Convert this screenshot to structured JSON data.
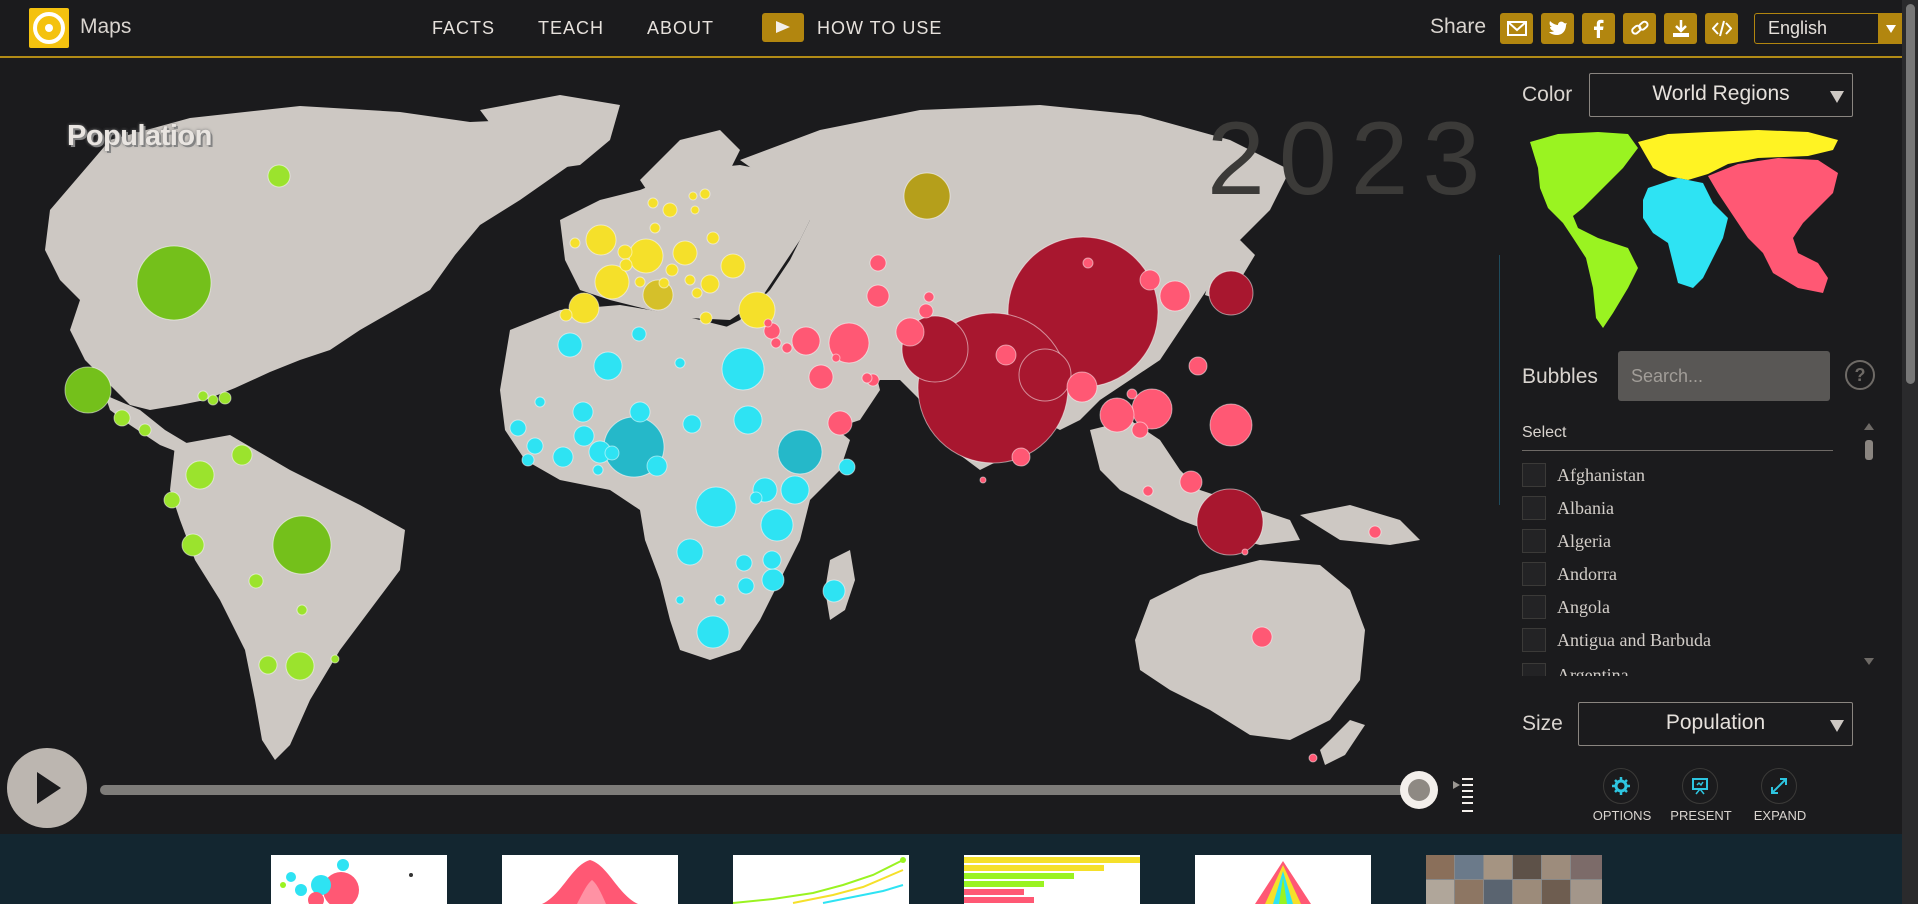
{
  "header": {
    "app_name": "Maps",
    "nav": [
      "FACTS",
      "TEACH",
      "ABOUT"
    ],
    "how_to_use": "HOW TO USE",
    "share_label": "Share",
    "share_icons": [
      "mail-icon",
      "twitter-icon",
      "facebook-icon",
      "link-icon",
      "download-icon",
      "embed-icon"
    ],
    "language": "English"
  },
  "map": {
    "indicator": "Population",
    "year": "2023",
    "colors": {
      "americas": "#8fdc1b",
      "europe": "#f5e02a",
      "africa": "#2ee3f3",
      "asia": "#ff5874",
      "land": "#cdc8c3",
      "ocean": "#1b1b1d"
    }
  },
  "timeline": {
    "progress": 1.0
  },
  "panel": {
    "color_label": "Color",
    "color_value": "World Regions",
    "bubbles_label": "Bubbles",
    "search_placeholder": "Search...",
    "help": "?",
    "select_label": "Select",
    "countries": [
      "Afghanistan",
      "Albania",
      "Algeria",
      "Andorra",
      "Angola",
      "Antigua and Barbuda",
      "Argentina"
    ],
    "size_label": "Size",
    "size_value": "Population",
    "tools": {
      "options": "OPTIONS",
      "present": "PRESENT",
      "expand": "EXPAND"
    }
  }
}
